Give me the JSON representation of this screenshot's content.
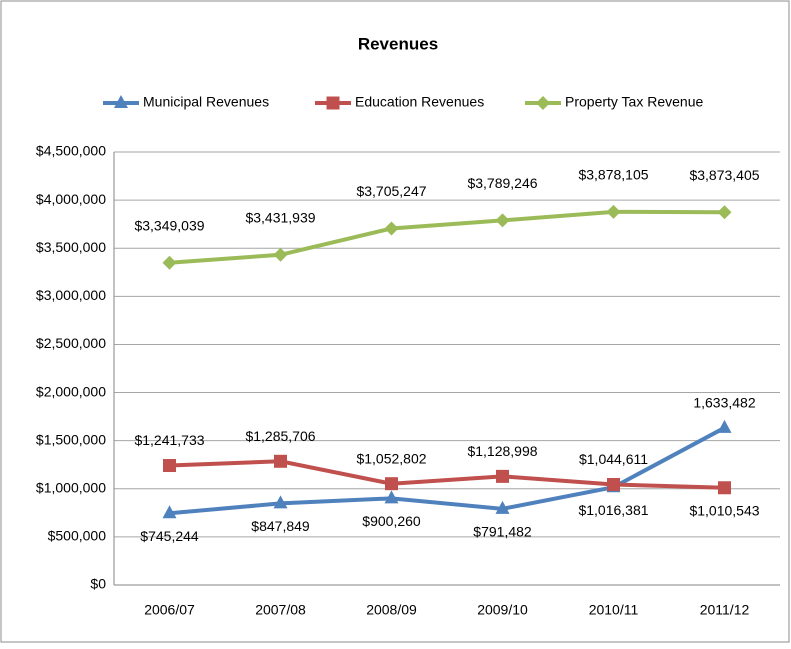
{
  "chart_data": {
    "type": "line",
    "title": "Revenues",
    "categories": [
      "2006/07",
      "2007/08",
      "2008/09",
      "2009/10",
      "2010/11",
      "2011/12"
    ],
    "series": [
      {
        "name": "Municipal Revenues",
        "color": "#4f81bd",
        "marker": "triangle",
        "values": [
          745244,
          847849,
          900260,
          791482,
          1016381,
          1633482
        ],
        "value_labels": [
          "$745,244",
          "$847,849",
          "$900,260",
          "$791,482",
          "$1,016,381",
          "1,633,482"
        ]
      },
      {
        "name": "Education Revenues",
        "color": "#c0504d",
        "marker": "square",
        "values": [
          1241733,
          1285706,
          1052802,
          1128998,
          1044611,
          1010543
        ],
        "value_labels": [
          "$1,241,733",
          "$1,285,706",
          "$1,052,802",
          "$1,128,998",
          "$1,044,611",
          "$1,010,543"
        ]
      },
      {
        "name": "Property Tax Revenue",
        "color": "#9bbb59",
        "marker": "diamond",
        "values": [
          3349039,
          3431939,
          3705247,
          3789246,
          3878105,
          3873405
        ],
        "value_labels": [
          "$3,349,039",
          "$3,431,939",
          "$3,705,247",
          "$3,789,246",
          "$3,878,105",
          "$3,873,405"
        ]
      }
    ],
    "ylim": [
      0,
      4500000
    ],
    "yticks": [
      {
        "value": 0,
        "label": "$0"
      },
      {
        "value": 500000,
        "label": "$500,000"
      },
      {
        "value": 1000000,
        "label": "$1,000,000"
      },
      {
        "value": 1500000,
        "label": "$1,500,000"
      },
      {
        "value": 2000000,
        "label": "$2,000,000"
      },
      {
        "value": 2500000,
        "label": "$2,500,000"
      },
      {
        "value": 3000000,
        "label": "$3,000,000"
      },
      {
        "value": 3500000,
        "label": "$3,500,000"
      },
      {
        "value": 4000000,
        "label": "$4,000,000"
      },
      {
        "value": 4500000,
        "label": "$4,500,000"
      }
    ],
    "grid": true,
    "legend": "top"
  }
}
